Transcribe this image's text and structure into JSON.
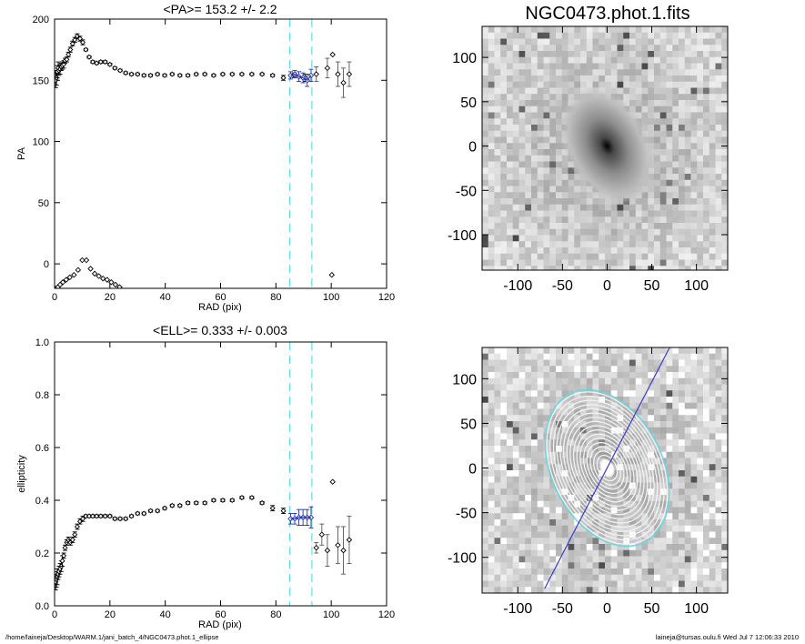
{
  "footer": {
    "path": "/home/laineja/Desktop/WARM.1/jani_batch_4/NGC0473.phot.1_ellipse",
    "user_time": "laineja@tursas.oulu.fi  Wed Jul  7 12:06:33 2010"
  },
  "chart_data": [
    {
      "id": "pa",
      "type": "scatter",
      "title": "<PA>= 153.2 +/-   2.2",
      "xlabel": "RAD (pix)",
      "ylabel": "PA",
      "xlim": [
        0,
        120
      ],
      "ylim": [
        -20,
        200
      ],
      "xticks": [
        0,
        20,
        40,
        60,
        80,
        100,
        120
      ],
      "yticks": [
        0,
        50,
        100,
        150,
        200
      ],
      "vlines": [
        85,
        93
      ],
      "series": [
        {
          "style": "black-diamond-errorbars",
          "x": [
            0.4,
            0.7,
            1.0,
            1.3,
            1.6,
            2.0,
            2.4,
            2.8,
            3.3,
            3.8,
            4.4,
            5.0,
            5.7,
            6.5,
            7.3,
            8.2,
            9.2,
            10.2,
            11.3,
            12.5,
            13.8,
            15.2,
            16.7,
            18.3,
            20.0,
            21.8,
            23.7,
            25.7,
            27.8,
            30.0,
            32.3,
            34.7,
            37.2,
            39.8,
            42.5,
            45.3,
            48.2,
            51.2,
            54.3,
            57.5,
            60.8,
            64.2,
            67.7,
            71.3,
            75.0,
            78.8,
            82.7,
            86.6,
            90.6
          ],
          "y": [
            150,
            152,
            157,
            160,
            158,
            159,
            161,
            162,
            163,
            166,
            167,
            171,
            175,
            180,
            183,
            186,
            184,
            181,
            175,
            169,
            165,
            164,
            165,
            165,
            163,
            160,
            158,
            156,
            155,
            155,
            154,
            154,
            155,
            154,
            155,
            154,
            154,
            155,
            155,
            154,
            155,
            155,
            155,
            155,
            155,
            154,
            152,
            154,
            152
          ],
          "err": [
            6,
            6,
            5,
            5,
            4,
            4,
            3,
            3,
            3,
            2,
            2,
            2,
            2,
            2,
            2,
            2,
            2,
            2,
            1,
            1,
            1,
            1,
            1,
            1,
            1,
            1,
            1,
            1,
            1,
            1,
            1,
            1,
            1,
            1,
            1,
            1,
            1,
            1,
            1,
            1,
            1,
            1,
            1,
            1,
            1,
            1,
            2,
            2,
            3
          ]
        },
        {
          "style": "blue-fit-range",
          "x": [
            85.3,
            86.8,
            88.3,
            89.8,
            91.3,
            92.7
          ],
          "y": [
            154,
            155,
            153,
            152,
            150,
            154
          ],
          "err": [
            3,
            3,
            4,
            4,
            5,
            5
          ]
        },
        {
          "style": "outer-points",
          "x": [
            94.6,
            98.6,
            100.5,
            102.4,
            104.4,
            106.5
          ],
          "y": [
            155,
            160,
            171,
            155,
            148,
            155
          ],
          "err": [
            6,
            8,
            0,
            10,
            12,
            10
          ]
        },
        {
          "style": "wrapped-points",
          "x": [
            0.6,
            1.2,
            2.0,
            3.0,
            4.2,
            5.5,
            7.0,
            8.5,
            10.0,
            11.5,
            13.0,
            14.5,
            16.0,
            17.5,
            19.0,
            20.5,
            22.0,
            23.5,
            100.2
          ],
          "y": [
            -20,
            -19,
            -17,
            -15,
            -13,
            -11,
            -9,
            -5,
            3,
            3,
            -4,
            -8,
            -10,
            -12,
            -13,
            -15,
            -17,
            -19,
            -9
          ]
        }
      ]
    },
    {
      "id": "ellipticity",
      "type": "scatter",
      "title": "<ELL>= 0.333 +/-  0.003",
      "xlabel": "RAD (pix)",
      "ylabel": "ellipticity",
      "xlim": [
        0,
        120
      ],
      "ylim": [
        0,
        1
      ],
      "xticks": [
        0,
        20,
        40,
        60,
        80,
        100,
        120
      ],
      "yticks": [
        0.0,
        0.2,
        0.4,
        0.6,
        0.8,
        1.0
      ],
      "ytick_labels": [
        "0.0",
        "0.2",
        "0.4",
        "0.6",
        "0.8",
        "1.0"
      ],
      "vlines": [
        85,
        93
      ],
      "series": [
        {
          "style": "black-diamond-errorbars",
          "x": [
            0.4,
            0.7,
            1.0,
            1.3,
            1.6,
            2.0,
            2.4,
            2.8,
            3.3,
            3.8,
            4.4,
            5.0,
            5.7,
            6.5,
            7.3,
            8.2,
            9.2,
            10.2,
            11.3,
            12.5,
            13.8,
            15.2,
            16.7,
            18.3,
            20.0,
            21.8,
            23.7,
            25.7,
            27.8,
            30.0,
            32.3,
            34.7,
            37.2,
            39.8,
            42.5,
            45.3,
            48.2,
            51.2,
            54.3,
            57.5,
            60.8,
            64.2,
            67.7,
            71.3,
            75.0,
            78.8,
            82.7
          ],
          "y": [
            0.09,
            0.1,
            0.11,
            0.12,
            0.13,
            0.14,
            0.15,
            0.17,
            0.19,
            0.22,
            0.24,
            0.25,
            0.24,
            0.25,
            0.27,
            0.3,
            0.32,
            0.33,
            0.34,
            0.34,
            0.34,
            0.34,
            0.34,
            0.34,
            0.34,
            0.33,
            0.33,
            0.33,
            0.34,
            0.35,
            0.35,
            0.36,
            0.36,
            0.37,
            0.38,
            0.38,
            0.39,
            0.39,
            0.39,
            0.4,
            0.4,
            0.4,
            0.41,
            0.41,
            0.39,
            0.37,
            0.36
          ],
          "err": [
            0.03,
            0.03,
            0.03,
            0.02,
            0.02,
            0.02,
            0.02,
            0.02,
            0.01,
            0.01,
            0.01,
            0.01,
            0.01,
            0.01,
            0.01,
            0.01,
            0.01,
            0.01,
            0.005,
            0.005,
            0.005,
            0.005,
            0.005,
            0.005,
            0.005,
            0.005,
            0.005,
            0.005,
            0.005,
            0.005,
            0.005,
            0.005,
            0.005,
            0.005,
            0.005,
            0.005,
            0.005,
            0.005,
            0.005,
            0.005,
            0.005,
            0.005,
            0.005,
            0.005,
            0.005,
            0.01,
            0.01
          ]
        },
        {
          "style": "blue-fit-range",
          "x": [
            85.3,
            86.8,
            88.3,
            89.8,
            91.3,
            92.7
          ],
          "y": [
            0.33,
            0.33,
            0.335,
            0.335,
            0.335,
            0.335
          ],
          "err": [
            0.02,
            0.02,
            0.03,
            0.03,
            0.03,
            0.04
          ]
        },
        {
          "style": "outer-points",
          "x": [
            94.6,
            96.6,
            98.6,
            100.5,
            102.4,
            104.4,
            106.5
          ],
          "y": [
            0.22,
            0.27,
            0.21,
            0.47,
            0.23,
            0.21,
            0.25
          ],
          "err": [
            0.02,
            0.04,
            0.06,
            0,
            0.07,
            0.09,
            0.09
          ]
        }
      ]
    },
    {
      "id": "image-top",
      "type": "heatmap",
      "title": "NGC0473.phot.1.fits",
      "xlim": [
        -140,
        135
      ],
      "ylim": [
        -140,
        135
      ],
      "xticks": [
        -100,
        -50,
        0,
        50,
        100
      ],
      "yticks": [
        -100,
        -50,
        0,
        50,
        100
      ],
      "galaxy": {
        "center": [
          0,
          0
        ],
        "pa_deg": 153.2,
        "ellipticity": 0.333
      }
    },
    {
      "id": "image-bottom",
      "type": "heatmap",
      "title": "",
      "xlim": [
        -140,
        135
      ],
      "ylim": [
        -140,
        135
      ],
      "xticks": [
        -100,
        -50,
        0,
        50,
        100
      ],
      "yticks": [
        -100,
        -50,
        0,
        50,
        100
      ],
      "major_axis_line": {
        "x1": -70,
        "y1": -135,
        "x2": 70,
        "y2": 135
      },
      "outer_ellipse": {
        "semi_major": 93,
        "pa_deg": 153.2,
        "ellipticity": 0.333
      }
    }
  ]
}
